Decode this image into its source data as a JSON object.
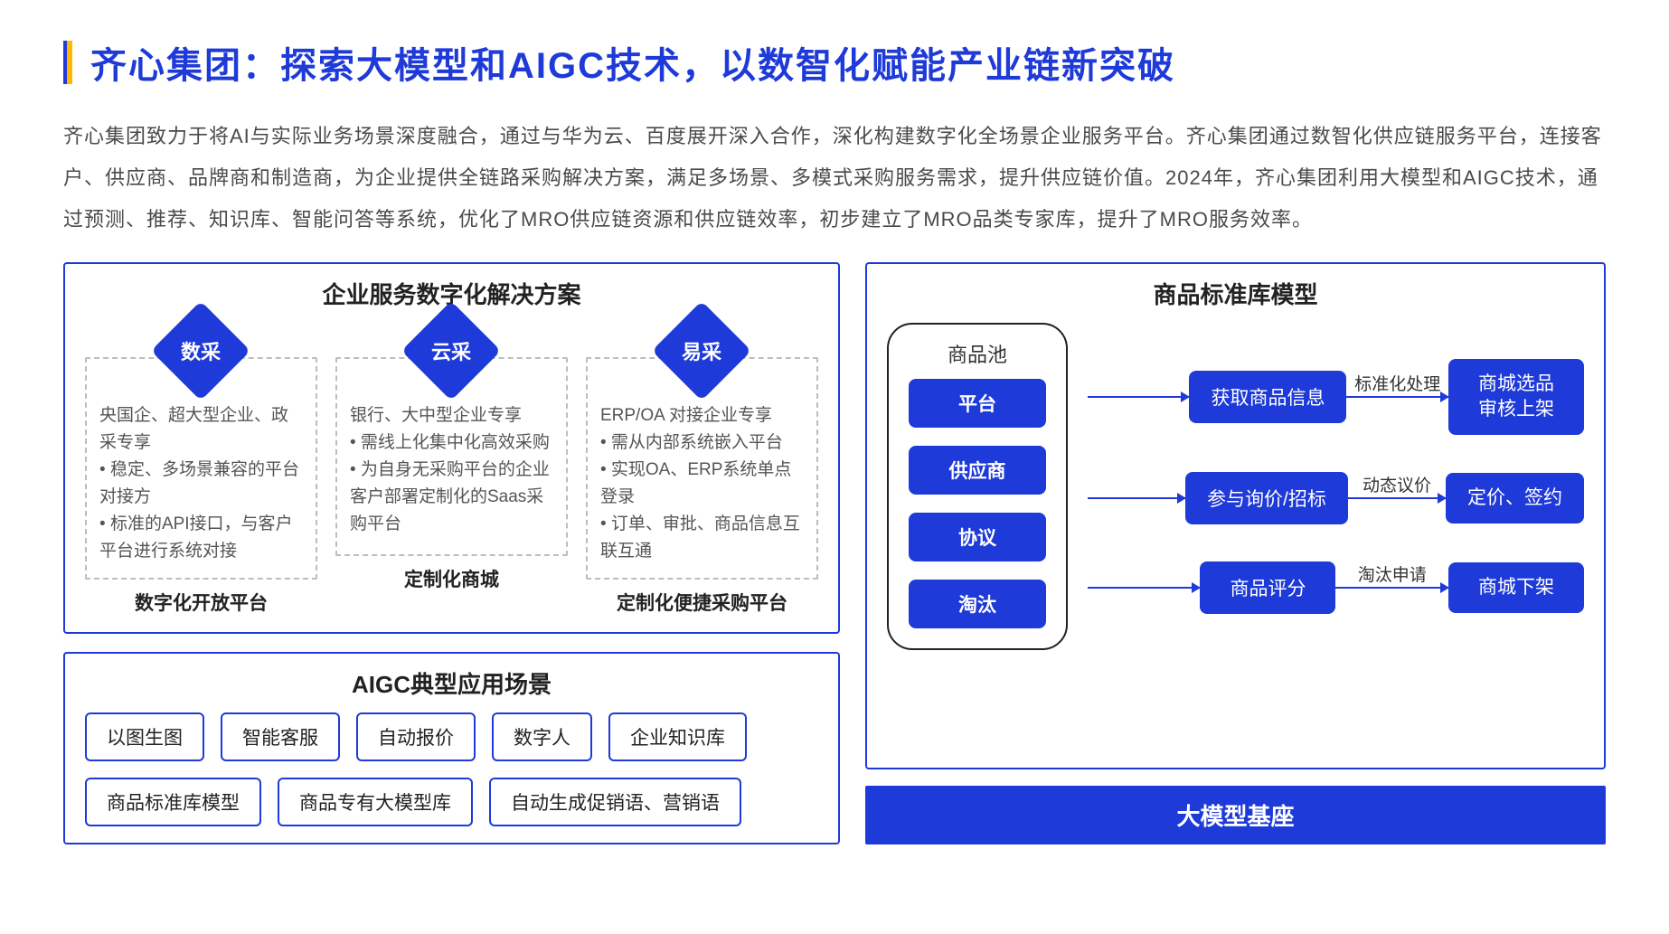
{
  "colors": {
    "primary": "#1e3ad8",
    "accent": "#ffb800",
    "text": "#4a4a4a",
    "border_dash": "#bdbdbd",
    "bg": "#ffffff"
  },
  "title": "齐心集团：探索大模型和AIGC技术，以数智化赋能产业链新突破",
  "paragraph": "齐心集团致力于将AI与实际业务场景深度融合，通过与华为云、百度展开深入合作，深化构建数字化全场景企业服务平台。齐心集团通过数智化供应链服务平台，连接客户、供应商、品牌商和制造商，为企业提供全链路采购解决方案，满足多场景、多模式采购服务需求，提升供应链价值。2024年，齐心集团利用大模型和AIGC技术，通过预测、推荐、知识库、智能问答等系统，优化了MRO供应链资源和供应链效率，初步建立了MRO品类专家库，提升了MRO服务效率。",
  "left_top": {
    "title": "企业服务数字化解决方案",
    "solutions": [
      {
        "diamond": "数采",
        "head": "央国企、超大型企业、政采专享",
        "bullets": [
          "稳定、多场景兼容的平台对接方",
          "标准的API接口，与客户平台进行系统对接"
        ],
        "foot": "数字化开放平台"
      },
      {
        "diamond": "云采",
        "head": "银行、大中型企业专享",
        "bullets": [
          "需线上化集中化高效采购",
          "为自身无采购平台的企业客户部署定制化的Saas采购平台"
        ],
        "foot": "定制化商城"
      },
      {
        "diamond": "易采",
        "head": "ERP/OA 对接企业专享",
        "bullets": [
          "需从内部系统嵌入平台",
          "实现OA、ERP系统单点登录",
          "订单、审批、商品信息互联互通"
        ],
        "foot": "定制化便捷采购平台"
      }
    ]
  },
  "left_bottom": {
    "title": "AIGC典型应用场景",
    "tags": [
      "以图生图",
      "智能客服",
      "自动报价",
      "数字人",
      "企业知识库",
      "商品标准库模型",
      "商品专有大模型库",
      "自动生成促销语、营销语"
    ]
  },
  "right": {
    "title": "商品标准库模型",
    "pool_title": "商品池",
    "pool_items": [
      "平台",
      "供应商",
      "协议",
      "淘汰"
    ],
    "flows": [
      {
        "mid": "获取商品信息",
        "arrow_label": "标准化处理",
        "end": "商城选品\n审核上架"
      },
      {
        "mid": "参与询价/招标",
        "arrow_label": "动态议价",
        "end": "定价、签约"
      },
      {
        "mid": "商品评分",
        "arrow_label": "淘汰申请",
        "end": "商城下架"
      }
    ],
    "base": "大模型基座"
  }
}
